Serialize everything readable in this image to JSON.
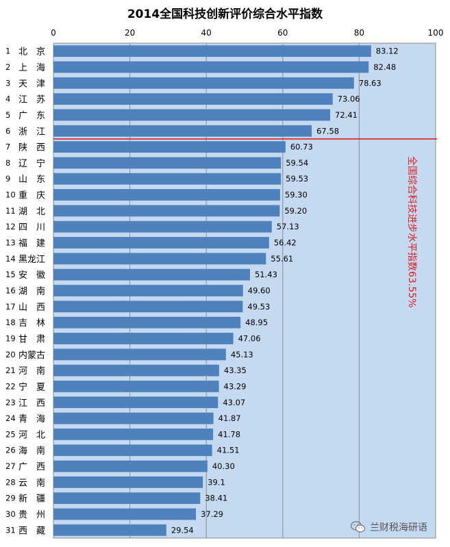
{
  "chart_data": {
    "type": "bar",
    "orientation": "horizontal",
    "title": "2014全国科技创新评价综合水平指数",
    "xlim": [
      0,
      100
    ],
    "xticks": [
      "0",
      "20",
      "40",
      "60",
      "80",
      "100"
    ],
    "grid": true,
    "colors": {
      "bar": "#4f81bd",
      "plot_bg": "#c5d9f1",
      "reference": "#e31a1c"
    },
    "ranks": [
      "1",
      "2",
      "3",
      "4",
      "5",
      "6",
      "7",
      "8",
      "9",
      "10",
      "11",
      "12",
      "13",
      "14",
      "15",
      "16",
      "17",
      "18",
      "19",
      "20",
      "21",
      "22",
      "23",
      "24",
      "25",
      "26",
      "27",
      "28",
      "29",
      "30",
      "31"
    ],
    "categories": [
      "北　京",
      "上　海",
      "天　津",
      "江　苏",
      "广　东",
      "浙　江",
      "陕　西",
      "辽　宁",
      "山　东",
      "重　庆",
      "湖　北",
      "四　川",
      "福　建",
      "黑龙江",
      "安　徽",
      "湖　南",
      "山　西",
      "吉　林",
      "甘　肃",
      "内蒙古",
      "河　南",
      "宁　夏",
      "江　西",
      "青　海",
      "河　北",
      "海　南",
      "广　西",
      "云　南",
      "新　疆",
      "贵　州",
      "西　藏"
    ],
    "values": [
      83.12,
      82.48,
      78.63,
      73.06,
      72.41,
      67.58,
      60.73,
      59.54,
      59.53,
      59.3,
      59.2,
      57.13,
      56.42,
      55.61,
      51.43,
      49.6,
      49.53,
      48.95,
      47.06,
      45.13,
      43.35,
      43.29,
      43.07,
      41.87,
      41.78,
      41.51,
      40.3,
      39.1,
      38.41,
      37.29,
      29.54
    ],
    "value_labels": [
      "83.12",
      "82.48",
      "78.63",
      "73.06",
      "72.41",
      "67.58",
      "60.73",
      "59.54",
      "59.53",
      "59.30",
      "59.20",
      "57.13",
      "56.42",
      "55.61",
      "51.43",
      "49.60",
      "49.53",
      "48.95",
      "47.06",
      "45.13",
      "43.35",
      "43.29",
      "43.07",
      "41.87",
      "41.78",
      "41.51",
      "40.30",
      "39.1",
      "38.41",
      "37.29",
      "29.54"
    ],
    "reference_line": {
      "after_rank": 6,
      "label": "全国综合科技进步水平指数63.55%"
    }
  },
  "watermark": {
    "text": "兰财税海研语",
    "icon": "wechat-icon"
  }
}
